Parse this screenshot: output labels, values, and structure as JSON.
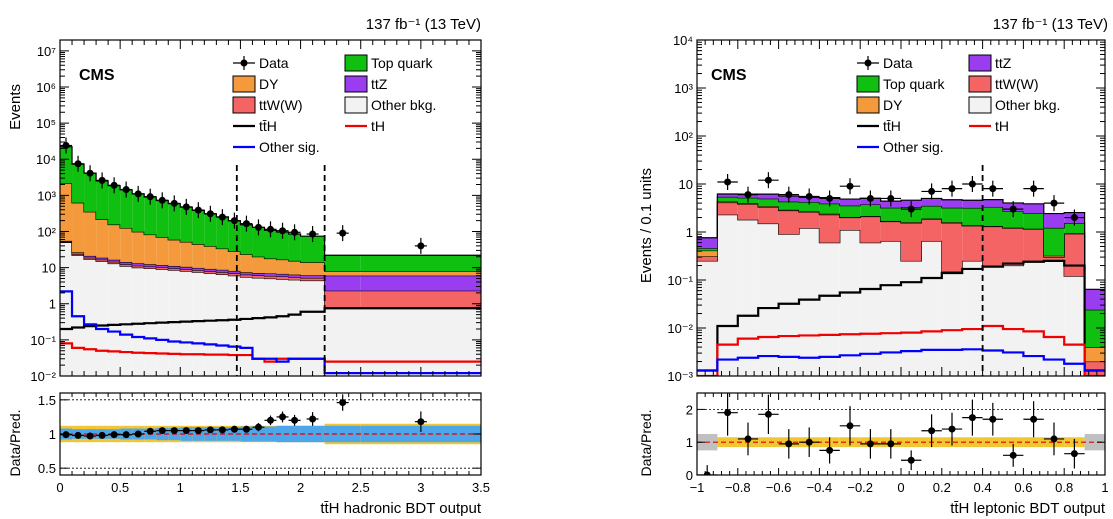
{
  "chart_data": [
    {
      "type": "step",
      "lumi_label": "137 fb⁻¹ (13 TeV)",
      "cms_label": "CMS",
      "xlabel": "tt̄H hadronic BDT output",
      "ylabel": "Events",
      "ratio_ylabel": "Data/Pred.",
      "xlim": [
        0,
        3.5
      ],
      "ylim": [
        0.01,
        20000000
      ],
      "yscale": "log",
      "ratio_ylim": [
        0.4,
        1.6
      ],
      "x_ticks": [
        "0",
        "0.5",
        "1",
        "1.5",
        "2",
        "2.5",
        "3",
        "3.5"
      ],
      "y_ticks": [
        "10⁻²",
        "10⁻¹",
        "1",
        "10",
        "10²",
        "10³",
        "10⁴",
        "10⁵",
        "10⁶",
        "10⁷"
      ],
      "ratio_ticks": [
        "0.5",
        "1",
        "1.5"
      ],
      "category_lines": [
        1.47,
        2.2
      ],
      "bin_edges": [
        0,
        0.1,
        0.2,
        0.3,
        0.4,
        0.5,
        0.6,
        0.7,
        0.8,
        0.9,
        1.0,
        1.1,
        1.2,
        1.3,
        1.4,
        1.5,
        1.6,
        1.7,
        1.8,
        1.9,
        2.0,
        2.2,
        2.5,
        3.5
      ],
      "stack_order": [
        "other_bkg",
        "ttw",
        "ttz",
        "dy",
        "top"
      ],
      "stack": {
        "other_bkg": [
          50,
          22,
          17,
          15,
          13,
          11,
          10,
          9.5,
          9,
          8.5,
          8,
          7.5,
          7,
          6.5,
          6,
          5.5,
          5.2,
          5,
          4.8,
          4.6,
          4.4,
          0.8,
          0.8
        ],
        "ttw": [
          2,
          1.8,
          1.7,
          1.6,
          1.5,
          1.4,
          1.3,
          1.2,
          1.2,
          1.1,
          1.1,
          1.0,
          1.0,
          1.0,
          1.0,
          0.9,
          0.9,
          0.9,
          0.9,
          0.9,
          0.8,
          1.5,
          1.5
        ],
        "ttz": [
          3,
          2.6,
          2.4,
          2.2,
          2.0,
          1.9,
          1.8,
          1.7,
          1.6,
          1.5,
          1.4,
          1.3,
          1.2,
          1.2,
          1.1,
          1.0,
          1.0,
          1.0,
          1.0,
          0.9,
          0.9,
          3.7,
          3.7
        ],
        "dy": [
          2100,
          600,
          330,
          200,
          140,
          110,
          85,
          70,
          58,
          48,
          41,
          35,
          30,
          25,
          20,
          16,
          13,
          11,
          10,
          9,
          8,
          2,
          2
        ],
        "top": [
          20000,
          6700,
          3800,
          2300,
          1700,
          1300,
          1000,
          820,
          650,
          530,
          420,
          340,
          270,
          220,
          170,
          130,
          110,
          90,
          80,
          70,
          60,
          14,
          14
        ]
      },
      "lines": {
        "tth": [
          0.2,
          0.22,
          0.24,
          0.25,
          0.26,
          0.27,
          0.28,
          0.29,
          0.3,
          0.31,
          0.32,
          0.33,
          0.34,
          0.35,
          0.36,
          0.38,
          0.4,
          0.42,
          0.45,
          0.5,
          0.6,
          0.75,
          0.75
        ],
        "th": [
          0.08,
          0.06,
          0.055,
          0.05,
          0.048,
          0.046,
          0.044,
          0.043,
          0.042,
          0.041,
          0.04,
          0.04,
          0.039,
          0.039,
          0.038,
          0.038,
          0.03,
          0.025,
          0.03,
          0.03,
          0.03,
          0.025,
          0.025
        ],
        "other_sig": [
          2.2,
          0.45,
          0.27,
          0.2,
          0.17,
          0.14,
          0.12,
          0.11,
          0.1,
          0.09,
          0.085,
          0.08,
          0.075,
          0.07,
          0.065,
          0.06,
          0.03,
          0.03,
          0.025,
          0.03,
          0.03,
          0.012,
          0.012
        ]
      },
      "data": {
        "x": [
          0.05,
          0.15,
          0.25,
          0.35,
          0.45,
          0.55,
          0.65,
          0.75,
          0.85,
          0.95,
          1.05,
          1.15,
          1.25,
          1.35,
          1.45,
          1.55,
          1.65,
          1.75,
          1.85,
          1.95,
          2.1,
          2.35,
          3.0
        ],
        "y": [
          24000,
          7500,
          4100,
          2600,
          1900,
          1450,
          1100,
          920,
          730,
          600,
          480,
          390,
          310,
          250,
          200,
          165,
          130,
          115,
          105,
          95,
          85,
          90,
          40
        ]
      },
      "ratio": {
        "x": [
          0.05,
          0.15,
          0.25,
          0.35,
          0.45,
          0.55,
          0.65,
          0.75,
          0.85,
          0.95,
          1.05,
          1.15,
          1.25,
          1.35,
          1.45,
          1.55,
          1.65,
          1.75,
          1.85,
          1.95,
          2.1,
          2.35,
          3.0
        ],
        "y": [
          0.99,
          0.98,
          0.97,
          0.98,
          0.99,
          0.99,
          1.0,
          1.04,
          1.05,
          1.05,
          1.05,
          1.05,
          1.06,
          1.06,
          1.07,
          1.07,
          1.1,
          1.2,
          1.25,
          1.2,
          1.22,
          1.46,
          1.18
        ],
        "err": [
          0.01,
          0.01,
          0.01,
          0.01,
          0.01,
          0.02,
          0.02,
          0.02,
          0.02,
          0.03,
          0.03,
          0.03,
          0.04,
          0.05,
          0.05,
          0.05,
          0.06,
          0.07,
          0.08,
          0.08,
          0.1,
          0.12,
          0.15
        ]
      },
      "unc_band": [
        0.12,
        0.12,
        0.12,
        0.12,
        0.12,
        0.12,
        0.12,
        0.12,
        0.12,
        0.12,
        0.12,
        0.12,
        0.12,
        0.12,
        0.12,
        0.12,
        0.12,
        0.12,
        0.12,
        0.12,
        0.12,
        0.15,
        0.15
      ],
      "stat_band": [
        0.08,
        0.07,
        0.07,
        0.07,
        0.07,
        0.08,
        0.08,
        0.08,
        0.09,
        0.09,
        0.1,
        0.1,
        0.1,
        0.1,
        0.1,
        0.11,
        0.11,
        0.11,
        0.12,
        0.12,
        0.12,
        0.12,
        0.12
      ],
      "legend_cols": [
        [
          {
            "key": "data",
            "label": "Data"
          },
          {
            "key": "dy",
            "label": "DY"
          },
          {
            "key": "ttw",
            "label": "ttW(W)"
          },
          {
            "key": "tth",
            "label": "tt̄H"
          },
          {
            "key": "other_sig",
            "label": "Other sig."
          }
        ],
        [
          {
            "key": "top",
            "label": "Top quark"
          },
          {
            "key": "ttz",
            "label": "ttZ"
          },
          {
            "key": "other_bkg",
            "label": "Other bkg."
          },
          {
            "key": "th",
            "label": "tH"
          }
        ]
      ]
    },
    {
      "type": "step",
      "lumi_label": "137 fb⁻¹ (13 TeV)",
      "cms_label": "CMS",
      "xlabel": "tt̄H leptonic BDT output",
      "ylabel": "Events / 0.1 units",
      "ratio_ylabel": "Data/Pred.",
      "xlim": [
        -1,
        1
      ],
      "ylim": [
        0.001,
        10000
      ],
      "yscale": "log",
      "ratio_ylim": [
        0,
        2.5
      ],
      "x_ticks": [
        "−1",
        "−0.8",
        "−0.6",
        "−0.4",
        "−0.2",
        "0",
        "0.2",
        "0.4",
        "0.6",
        "0.8",
        "1"
      ],
      "y_ticks": [
        "10⁻³",
        "10⁻²",
        "10⁻¹",
        "1",
        "10",
        "10²",
        "10³",
        "10⁴"
      ],
      "ratio_ticks": [
        "0",
        "1",
        "2"
      ],
      "category_lines": [
        0.4
      ],
      "bin_edges": [
        -1.0,
        -0.9,
        -0.8,
        -0.7,
        -0.6,
        -0.5,
        -0.4,
        -0.3,
        -0.2,
        -0.1,
        0.0,
        0.1,
        0.2,
        0.3,
        0.4,
        0.5,
        0.6,
        0.7,
        0.8,
        0.9,
        1.0
      ],
      "stack_order": [
        "other_bkg",
        "ttw",
        "dy",
        "top",
        "ttz"
      ],
      "stack": {
        "other_bkg": [
          0.25,
          2.3,
          1.8,
          1.5,
          0.9,
          1.2,
          0.6,
          1.1,
          0.6,
          0.65,
          0.25,
          0.65,
          0.15,
          0.25,
          0.2,
          0.2,
          0.25,
          0.25,
          0.12,
          0.001
        ],
        "ttw": [
          0.06,
          1.8,
          2.0,
          1.8,
          1.9,
          1.4,
          1.7,
          0.9,
          1.5,
          1.0,
          1.3,
          1.2,
          1.4,
          1.1,
          1.1,
          1.0,
          0.9,
          0.05,
          0.8,
          0.001
        ],
        "dy": [
          0.1,
          0.2,
          0.15,
          0.15,
          0.1,
          0.1,
          0.1,
          0.05,
          0.05,
          0.05,
          0.05,
          0.05,
          0.05,
          0.03,
          0.03,
          0.03,
          0.02,
          0.02,
          0.02,
          0.002
        ],
        "top": [
          0.05,
          1.1,
          1.2,
          1.5,
          1.4,
          1.5,
          1.5,
          1.5,
          1.6,
          1.5,
          1.7,
          1.6,
          1.6,
          1.8,
          2.0,
          1.5,
          1.3,
          0.9,
          0.6,
          0.02
        ],
        "ttz": [
          0.3,
          0.8,
          1.0,
          1.2,
          1.3,
          1.1,
          1.3,
          1.3,
          1.3,
          1.2,
          1.3,
          1.5,
          1.5,
          1.4,
          1.4,
          1.3,
          1.4,
          1.2,
          1.0,
          0.04
        ]
      },
      "lines": {
        "tth": [
          0.0013,
          0.011,
          0.018,
          0.026,
          0.032,
          0.039,
          0.047,
          0.055,
          0.065,
          0.078,
          0.09,
          0.11,
          0.14,
          0.17,
          0.19,
          0.22,
          0.24,
          0.25,
          0.2,
          0.0013
        ],
        "th": [
          0.001,
          0.0045,
          0.006,
          0.0065,
          0.0068,
          0.007,
          0.0072,
          0.0074,
          0.0076,
          0.0078,
          0.008,
          0.0085,
          0.009,
          0.0095,
          0.011,
          0.0095,
          0.0085,
          0.0065,
          0.0045,
          0.001
        ],
        "other_sig": [
          0.0013,
          0.0022,
          0.0024,
          0.0026,
          0.0025,
          0.0024,
          0.0025,
          0.0027,
          0.0029,
          0.0031,
          0.0033,
          0.0035,
          0.0035,
          0.0036,
          0.0034,
          0.0031,
          0.0026,
          0.0022,
          0.0018,
          0.0013
        ]
      },
      "data": {
        "x": [
          -0.85,
          -0.75,
          -0.65,
          -0.55,
          -0.45,
          -0.35,
          -0.25,
          -0.15,
          -0.05,
          0.05,
          0.15,
          0.25,
          0.35,
          0.45,
          0.55,
          0.65,
          0.75,
          0.85
        ],
        "y": [
          11,
          6,
          12,
          6,
          5.5,
          5,
          9,
          5,
          5,
          3,
          7,
          8,
          10,
          8,
          3,
          8,
          4,
          2
        ]
      },
      "ratio": {
        "x": [
          -0.95,
          -0.85,
          -0.75,
          -0.65,
          -0.55,
          -0.45,
          -0.35,
          -0.25,
          -0.15,
          -0.05,
          0.05,
          0.15,
          0.25,
          0.35,
          0.45,
          0.55,
          0.65,
          0.75,
          0.85
        ],
        "y": [
          0.0,
          1.9,
          1.1,
          1.85,
          0.95,
          1.0,
          0.75,
          1.5,
          0.95,
          0.95,
          0.45,
          1.35,
          1.4,
          1.75,
          1.7,
          0.6,
          1.7,
          1.1,
          0.65
        ],
        "err": [
          0.3,
          0.7,
          0.5,
          0.6,
          0.45,
          0.45,
          0.4,
          0.6,
          0.45,
          0.45,
          0.3,
          0.5,
          0.5,
          0.55,
          0.5,
          0.35,
          0.55,
          0.5,
          0.45
        ]
      },
      "unc_band": [
        0.25,
        0.15,
        0.15,
        0.15,
        0.15,
        0.15,
        0.15,
        0.15,
        0.15,
        0.15,
        0.15,
        0.15,
        0.15,
        0.15,
        0.15,
        0.15,
        0.15,
        0.15,
        0.15,
        0.25
      ],
      "stat_band": [
        0.35,
        0.05,
        0.05,
        0.05,
        0.05,
        0.05,
        0.05,
        0.05,
        0.05,
        0.05,
        0.05,
        0.05,
        0.05,
        0.05,
        0.05,
        0.05,
        0.05,
        0.05,
        0.05,
        0.35
      ],
      "legend_cols": [
        [
          {
            "key": "data",
            "label": "Data"
          },
          {
            "key": "top",
            "label": "Top quark"
          },
          {
            "key": "dy",
            "label": "DY"
          },
          {
            "key": "tth",
            "label": "tt̄H"
          },
          {
            "key": "other_sig",
            "label": "Other sig."
          }
        ],
        [
          {
            "key": "ttz",
            "label": "ttZ"
          },
          {
            "key": "ttw",
            "label": "ttW(W)"
          },
          {
            "key": "other_bkg",
            "label": "Other bkg."
          },
          {
            "key": "th",
            "label": "tH"
          }
        ]
      ]
    }
  ],
  "colors": {
    "top": "#10c010",
    "dy": "#f49a3c",
    "ttz": "#9a3df0",
    "ttw": "#f46464",
    "other_bkg": "#f2f2f2",
    "tth": "#000000",
    "th": "#f00000",
    "other_sig": "#0000ff",
    "unc_band": "#f2c532",
    "stat_band": "#4da6ea",
    "grey_band": "#c0c0c0"
  }
}
